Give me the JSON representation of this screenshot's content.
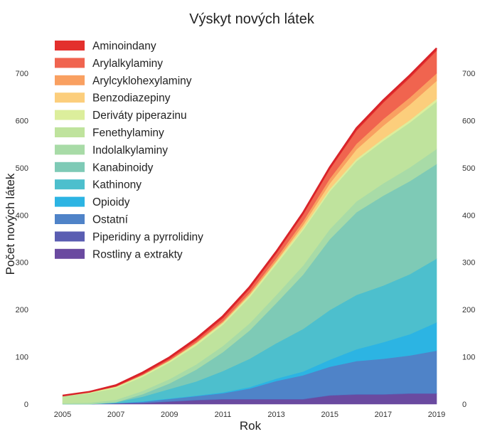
{
  "chart_data": {
    "type": "area",
    "stacked": true,
    "title": "Výskyt nových látek",
    "xlabel": "Rok",
    "ylabel": "Počet nových látek",
    "xlim": [
      2005,
      2019
    ],
    "ylim": [
      0,
      760
    ],
    "x_ticks": [
      "2005",
      "2007",
      "2009",
      "2011",
      "2013",
      "2015",
      "2017",
      "2019"
    ],
    "y_ticks": [
      "0",
      "100",
      "200",
      "300",
      "400",
      "500",
      "600",
      "700"
    ],
    "y_ticks_right": [
      "0",
      "100",
      "200",
      "300",
      "400",
      "500",
      "600",
      "700"
    ],
    "grid": false,
    "legend_position": "top-left",
    "x": [
      2005,
      2006,
      2007,
      2008,
      2009,
      2010,
      2011,
      2012,
      2013,
      2014,
      2015,
      2016,
      2017,
      2018,
      2019
    ],
    "series": [
      {
        "name": "Rostliny a extrakty",
        "color": "#6a4aa0",
        "values": [
          0,
          0,
          1,
          2,
          5,
          8,
          10,
          10,
          10,
          10,
          18,
          20,
          20,
          22,
          22
        ]
      },
      {
        "name": "Piperidiny a pyrrolidiny",
        "color": "#5a5db2",
        "values": [
          0,
          0,
          1,
          1,
          1,
          1,
          1,
          1,
          1,
          1,
          1,
          1,
          1,
          1,
          1
        ]
      },
      {
        "name": "Ostatní",
        "color": "#4f83c8",
        "values": [
          0,
          0,
          0,
          2,
          5,
          8,
          12,
          22,
          38,
          50,
          60,
          70,
          75,
          80,
          90
        ]
      },
      {
        "name": "Opioidy",
        "color": "#2cb4e3",
        "values": [
          0,
          0,
          0,
          1,
          1,
          1,
          2,
          3,
          5,
          8,
          15,
          25,
          35,
          45,
          60
        ]
      },
      {
        "name": "Kathinony",
        "color": "#4dbfcd",
        "values": [
          0,
          0,
          2,
          10,
          20,
          30,
          45,
          60,
          75,
          90,
          105,
          115,
          120,
          127,
          135
        ]
      },
      {
        "name": "Kanabinoidy",
        "color": "#7ecab6",
        "values": [
          0,
          0,
          0,
          5,
          12,
          25,
          40,
          60,
          85,
          115,
          150,
          175,
          190,
          197,
          200
        ]
      },
      {
        "name": "Indolalkylaminy",
        "color": "#a8dba7",
        "values": [
          2,
          3,
          5,
          7,
          9,
          11,
          13,
          15,
          17,
          19,
          21,
          23,
          26,
          29,
          32
        ]
      },
      {
        "name": "Fenethylaminy",
        "color": "#bfe39d",
        "values": [
          15,
          20,
          25,
          30,
          35,
          40,
          45,
          55,
          65,
          75,
          80,
          85,
          90,
          95,
          100
        ]
      },
      {
        "name": "Deriváty piperazinu",
        "color": "#dcee9c",
        "values": [
          1,
          2,
          3,
          4,
          4,
          5,
          5,
          5,
          5,
          5,
          5,
          5,
          5,
          5,
          6
        ]
      },
      {
        "name": "Benzodiazepiny",
        "color": "#fcce7c",
        "values": [
          0,
          0,
          0,
          0,
          0,
          0,
          0,
          1,
          2,
          6,
          12,
          20,
          27,
          33,
          38
        ]
      },
      {
        "name": "Arylcyklohexylaminy",
        "color": "#f9a061",
        "values": [
          0,
          0,
          0,
          0,
          1,
          2,
          3,
          4,
          6,
          8,
          10,
          12,
          14,
          15,
          16
        ]
      },
      {
        "name": "Arylalkylaminy",
        "color": "#f0644f",
        "values": [
          0,
          0,
          1,
          2,
          3,
          4,
          6,
          8,
          10,
          14,
          20,
          28,
          35,
          42,
          48
        ]
      },
      {
        "name": "Aminoindany",
        "color": "#e3302d",
        "values": [
          0,
          1,
          2,
          3,
          3,
          4,
          4,
          4,
          4,
          4,
          4,
          5,
          5,
          5,
          5
        ]
      }
    ]
  }
}
